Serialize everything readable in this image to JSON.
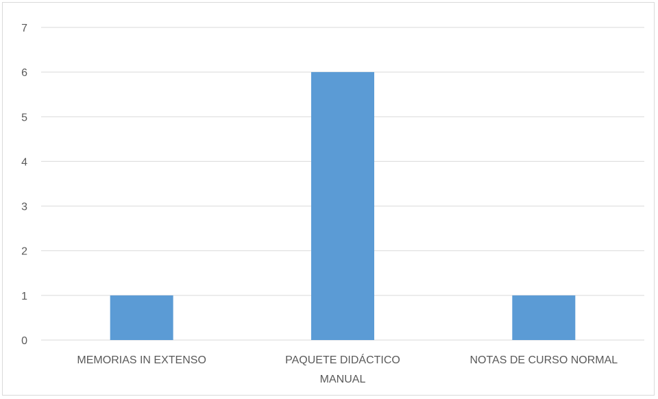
{
  "chart_data": {
    "type": "bar",
    "categories": [
      "MEMORIAS IN EXTENSO",
      "PAQUETE DIDÁCTICO MANUAL",
      "NOTAS DE CURSO NORMAL"
    ],
    "category_lines": [
      [
        "MEMORIAS IN EXTENSO"
      ],
      [
        "PAQUETE DIDÁCTICO",
        "MANUAL"
      ],
      [
        "NOTAS DE CURSO NORMAL"
      ]
    ],
    "values": [
      1,
      6,
      1
    ],
    "yticks": [
      "0",
      "1",
      "2",
      "3",
      "4",
      "5",
      "6",
      "7"
    ],
    "ylim": [
      0,
      7
    ],
    "grid": true,
    "legend": "none",
    "bar_color": "#5b9bd5",
    "grid_color": "#d9d9d9"
  }
}
